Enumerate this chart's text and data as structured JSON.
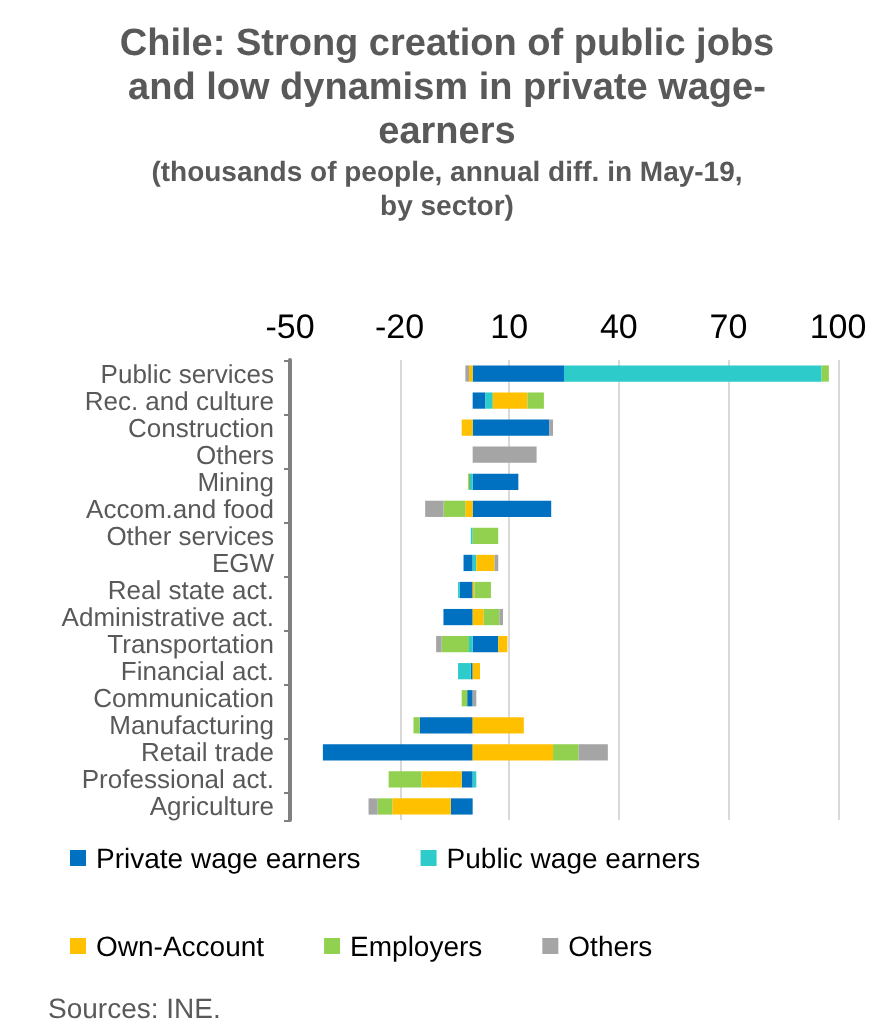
{
  "chart_data": {
    "type": "bar",
    "orientation": "horizontal",
    "stacked": true,
    "title": "Chile: Strong creation of public jobs and low dynamism in private wage-earners",
    "subtitle": "(thousands of people, annual diff. in May-19, by sector)",
    "categories": [
      "Public services",
      "Rec. and culture",
      "Construction",
      "Others",
      "Mining",
      "Accom.and food",
      "Other services",
      "EGW",
      "Real state act.",
      "Administrative act.",
      "Transportation",
      "Financial act.",
      "Communication",
      "Manufacturing",
      "Retail trade",
      "Professional act.",
      "Agriculture"
    ],
    "series": [
      {
        "name": "Private wage earners",
        "color": "#0070c0",
        "values": [
          25,
          3.5,
          21,
          null,
          12.5,
          21.5,
          null,
          -2.5,
          -3.5,
          -8,
          7,
          -0.5,
          -1.5,
          -14.5,
          -41,
          -3,
          -6
        ]
      },
      {
        "name": "Public wage earners",
        "color": "#2ecbcb",
        "values": [
          70.5,
          2,
          null,
          null,
          -1,
          null,
          -0.5,
          1,
          -0.5,
          null,
          -1,
          -3.5,
          null,
          null,
          null,
          1,
          null
        ]
      },
      {
        "name": "Own-Account",
        "color": "#ffc000",
        "values": [
          -1,
          9.5,
          -3,
          null,
          -0.3,
          -2,
          null,
          5,
          0.5,
          3,
          2.5,
          2,
          null,
          14,
          22,
          -11,
          -16
        ]
      },
      {
        "name": "Employers",
        "color": "#92d050",
        "values": [
          2,
          4.5,
          null,
          null,
          null,
          -6,
          7,
          null,
          4.5,
          4.3,
          -7.5,
          null,
          -1.5,
          -1.7,
          7,
          -9,
          -4
        ]
      },
      {
        "name": "Others",
        "color": "#a5a5a5",
        "values": [
          -1,
          null,
          1,
          17.5,
          null,
          -5,
          null,
          1,
          null,
          1,
          -1.5,
          null,
          1,
          null,
          8,
          null,
          -2.5
        ]
      }
    ],
    "xlim": [
      -50,
      100
    ],
    "xticks": [
      -50,
      -20,
      10,
      40,
      70,
      100
    ],
    "grid": "x",
    "legend": "bottom",
    "annotations": [
      "Sources: INE."
    ]
  }
}
